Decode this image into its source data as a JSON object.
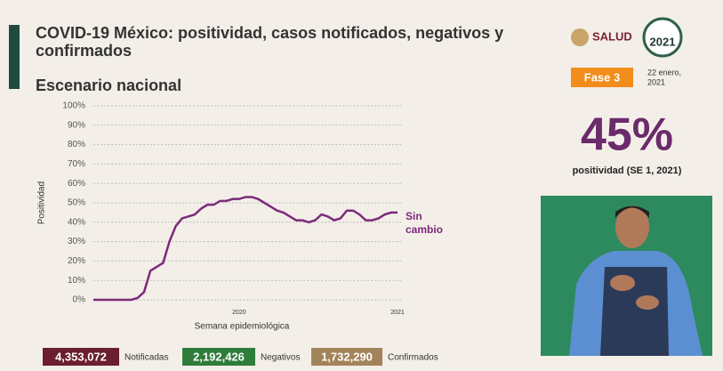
{
  "header": {
    "title_lines": [
      "COVID-19 México: positividad, casos notificados, negativos y",
      "confirmados"
    ],
    "subtitle": "Escenario nacional",
    "logo": "SALUD",
    "year_badge": "2021",
    "phase": "Fase 3",
    "date_lines": [
      "22 enero,",
      "2021"
    ]
  },
  "highlight": {
    "value": "45%",
    "caption": "positividad (SE 1, 2021)"
  },
  "counters": [
    {
      "value": "4,353,072",
      "label": "Notificadas",
      "color": "#6b1f2e"
    },
    {
      "value": "2,192,426",
      "label": "Negativos",
      "color": "#2f7d3a"
    },
    {
      "value": "1,732,290",
      "label": "Confirmados",
      "color": "#a3845a"
    }
  ],
  "chart_data": {
    "type": "line",
    "x_label": "Semana epidemiológica",
    "y_label": "Positividad",
    "annotation": "Sin cambio",
    "color": "#7b2a7b",
    "grid": true,
    "categories": [
      null,
      null,
      null,
      null,
      null,
      null,
      null,
      null,
      null,
      null,
      null,
      null,
      null,
      null,
      null,
      null,
      null,
      null,
      null,
      null,
      null,
      null,
      null,
      "2020",
      null,
      null,
      null,
      null,
      null,
      null,
      null,
      null,
      null,
      null,
      null,
      null,
      null,
      null,
      null,
      null,
      null,
      null,
      null,
      null,
      null,
      null,
      null,
      null,
      "2021"
    ],
    "values": [
      0,
      0,
      0,
      0,
      0,
      0,
      0,
      1,
      4,
      15,
      17,
      19,
      30,
      38,
      42,
      43,
      44,
      47,
      49,
      49,
      51,
      51,
      52,
      52,
      53,
      53,
      52,
      50,
      48,
      46,
      45,
      43,
      41,
      41,
      40,
      41,
      44,
      43,
      41,
      42,
      46,
      46,
      44,
      41,
      41,
      42,
      44,
      45,
      45
    ],
    "ylim": [
      0,
      100
    ],
    "yticks": [
      {
        "value": 0,
        "label": "0%"
      },
      {
        "value": 10,
        "label": "10%"
      },
      {
        "value": 20,
        "label": "20%"
      },
      {
        "value": 30,
        "label": "30%"
      },
      {
        "value": 40,
        "label": "40%"
      },
      {
        "value": 50,
        "label": "50%"
      },
      {
        "value": 60,
        "label": "60%"
      },
      {
        "value": 70,
        "label": "70%"
      },
      {
        "value": 80,
        "label": "80%"
      },
      {
        "value": 90,
        "label": "90%"
      },
      {
        "value": 100,
        "label": "100%"
      }
    ]
  }
}
